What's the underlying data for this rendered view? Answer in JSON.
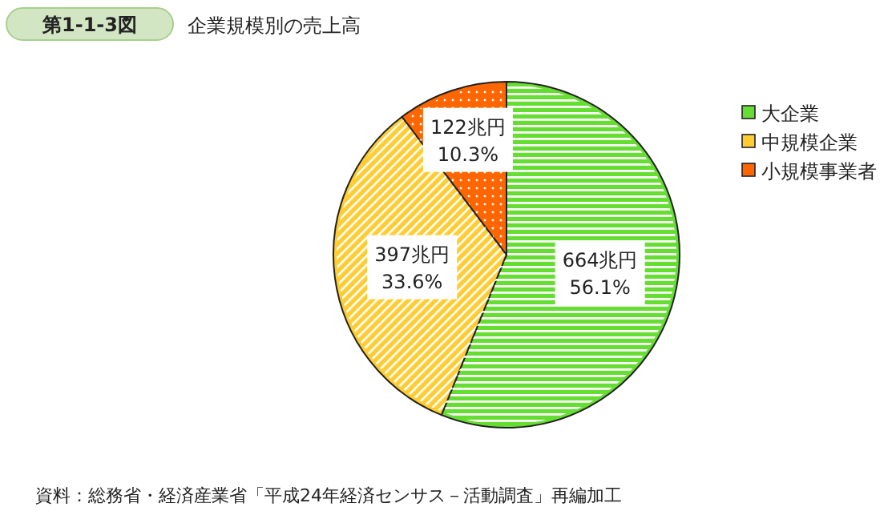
{
  "chart_data": {
    "type": "pie",
    "title": "企業規模別の売上高",
    "categories": [
      "大企業",
      "中規模企業",
      "小規模事業者"
    ],
    "values": [
      664,
      397,
      122
    ],
    "colors": [
      "#66dd33",
      "#ffcc33",
      "#ff6600"
    ],
    "value_labels": [
      "664兆円\n56.1%",
      "397兆円\n33.6%",
      "122兆円\n10.3%"
    ],
    "legend": "right",
    "annotations": [
      "第1-1-3図",
      "資料：総務省・経済産業省「平成24年経済センサス－活動調査」再編加工"
    ]
  }
}
